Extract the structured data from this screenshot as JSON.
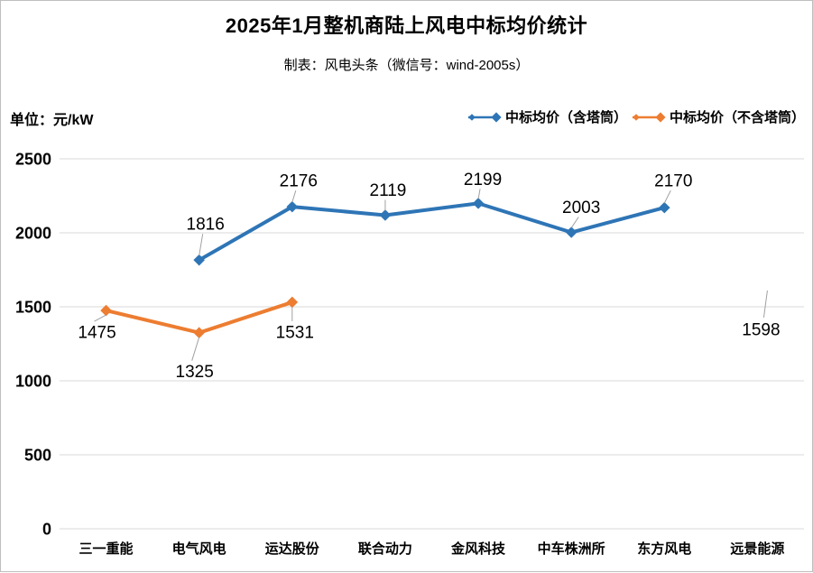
{
  "header": {
    "title": "2025年1月整机商陆上风电中标均价统计",
    "subtitle": "制表：风电头条（微信号：wind-2005s）"
  },
  "unit_label": "单位：元/kW",
  "colors": {
    "series_with_tower": "#2E75B6",
    "series_without_tower": "#ED7D31",
    "gridline": "#D9D9D9",
    "leader_line": "#A0A0A0",
    "text": "#000000",
    "border": "#BFBFBF"
  },
  "legend": {
    "items": [
      {
        "label": "中标均价（含塔筒）",
        "color": "#2E75B6"
      },
      {
        "label": "中标均价（不含塔筒）",
        "color": "#ED7D31"
      }
    ]
  },
  "chart_data": {
    "type": "line",
    "title": "2025年1月整机商陆上风电中标均价统计",
    "subtitle": "制表：风电头条（微信号：wind-2005s）",
    "ylabel": "单位：元/kW",
    "categories": [
      "三一重能",
      "电气风电",
      "运达股份",
      "联合动力",
      "金风科技",
      "中车株洲所",
      "东方风电",
      "远景能源"
    ],
    "series": [
      {
        "name": "中标均价（含塔筒）",
        "color": "#2E75B6",
        "values": [
          null,
          1816,
          2176,
          2119,
          2199,
          2003,
          2170,
          null
        ],
        "label_side": "above",
        "label_offsets": [
          null,
          [
            7,
            -40
          ],
          [
            7,
            -29
          ],
          [
            3,
            -28
          ],
          [
            5,
            -27
          ],
          [
            11,
            -28
          ],
          [
            10,
            -30
          ],
          null
        ],
        "hide_marker_indices": []
      },
      {
        "name": "中标均价（不含塔筒）",
        "color": "#ED7D31",
        "values": [
          1475,
          1325,
          1531,
          null,
          null,
          null,
          null,
          1598
        ],
        "label_side": "below",
        "label_offsets": [
          [
            -10,
            24
          ],
          [
            -5,
            43
          ],
          [
            3,
            33
          ],
          null,
          null,
          null,
          null,
          [
            4,
            41
          ]
        ],
        "hide_marker_indices": [
          7
        ]
      }
    ],
    "yticks": [
      0,
      500,
      1000,
      1500,
      2000,
      2500
    ],
    "ylim": [
      0,
      2500
    ],
    "grid": true,
    "legend_position": "top-right",
    "marker": "diamond"
  }
}
